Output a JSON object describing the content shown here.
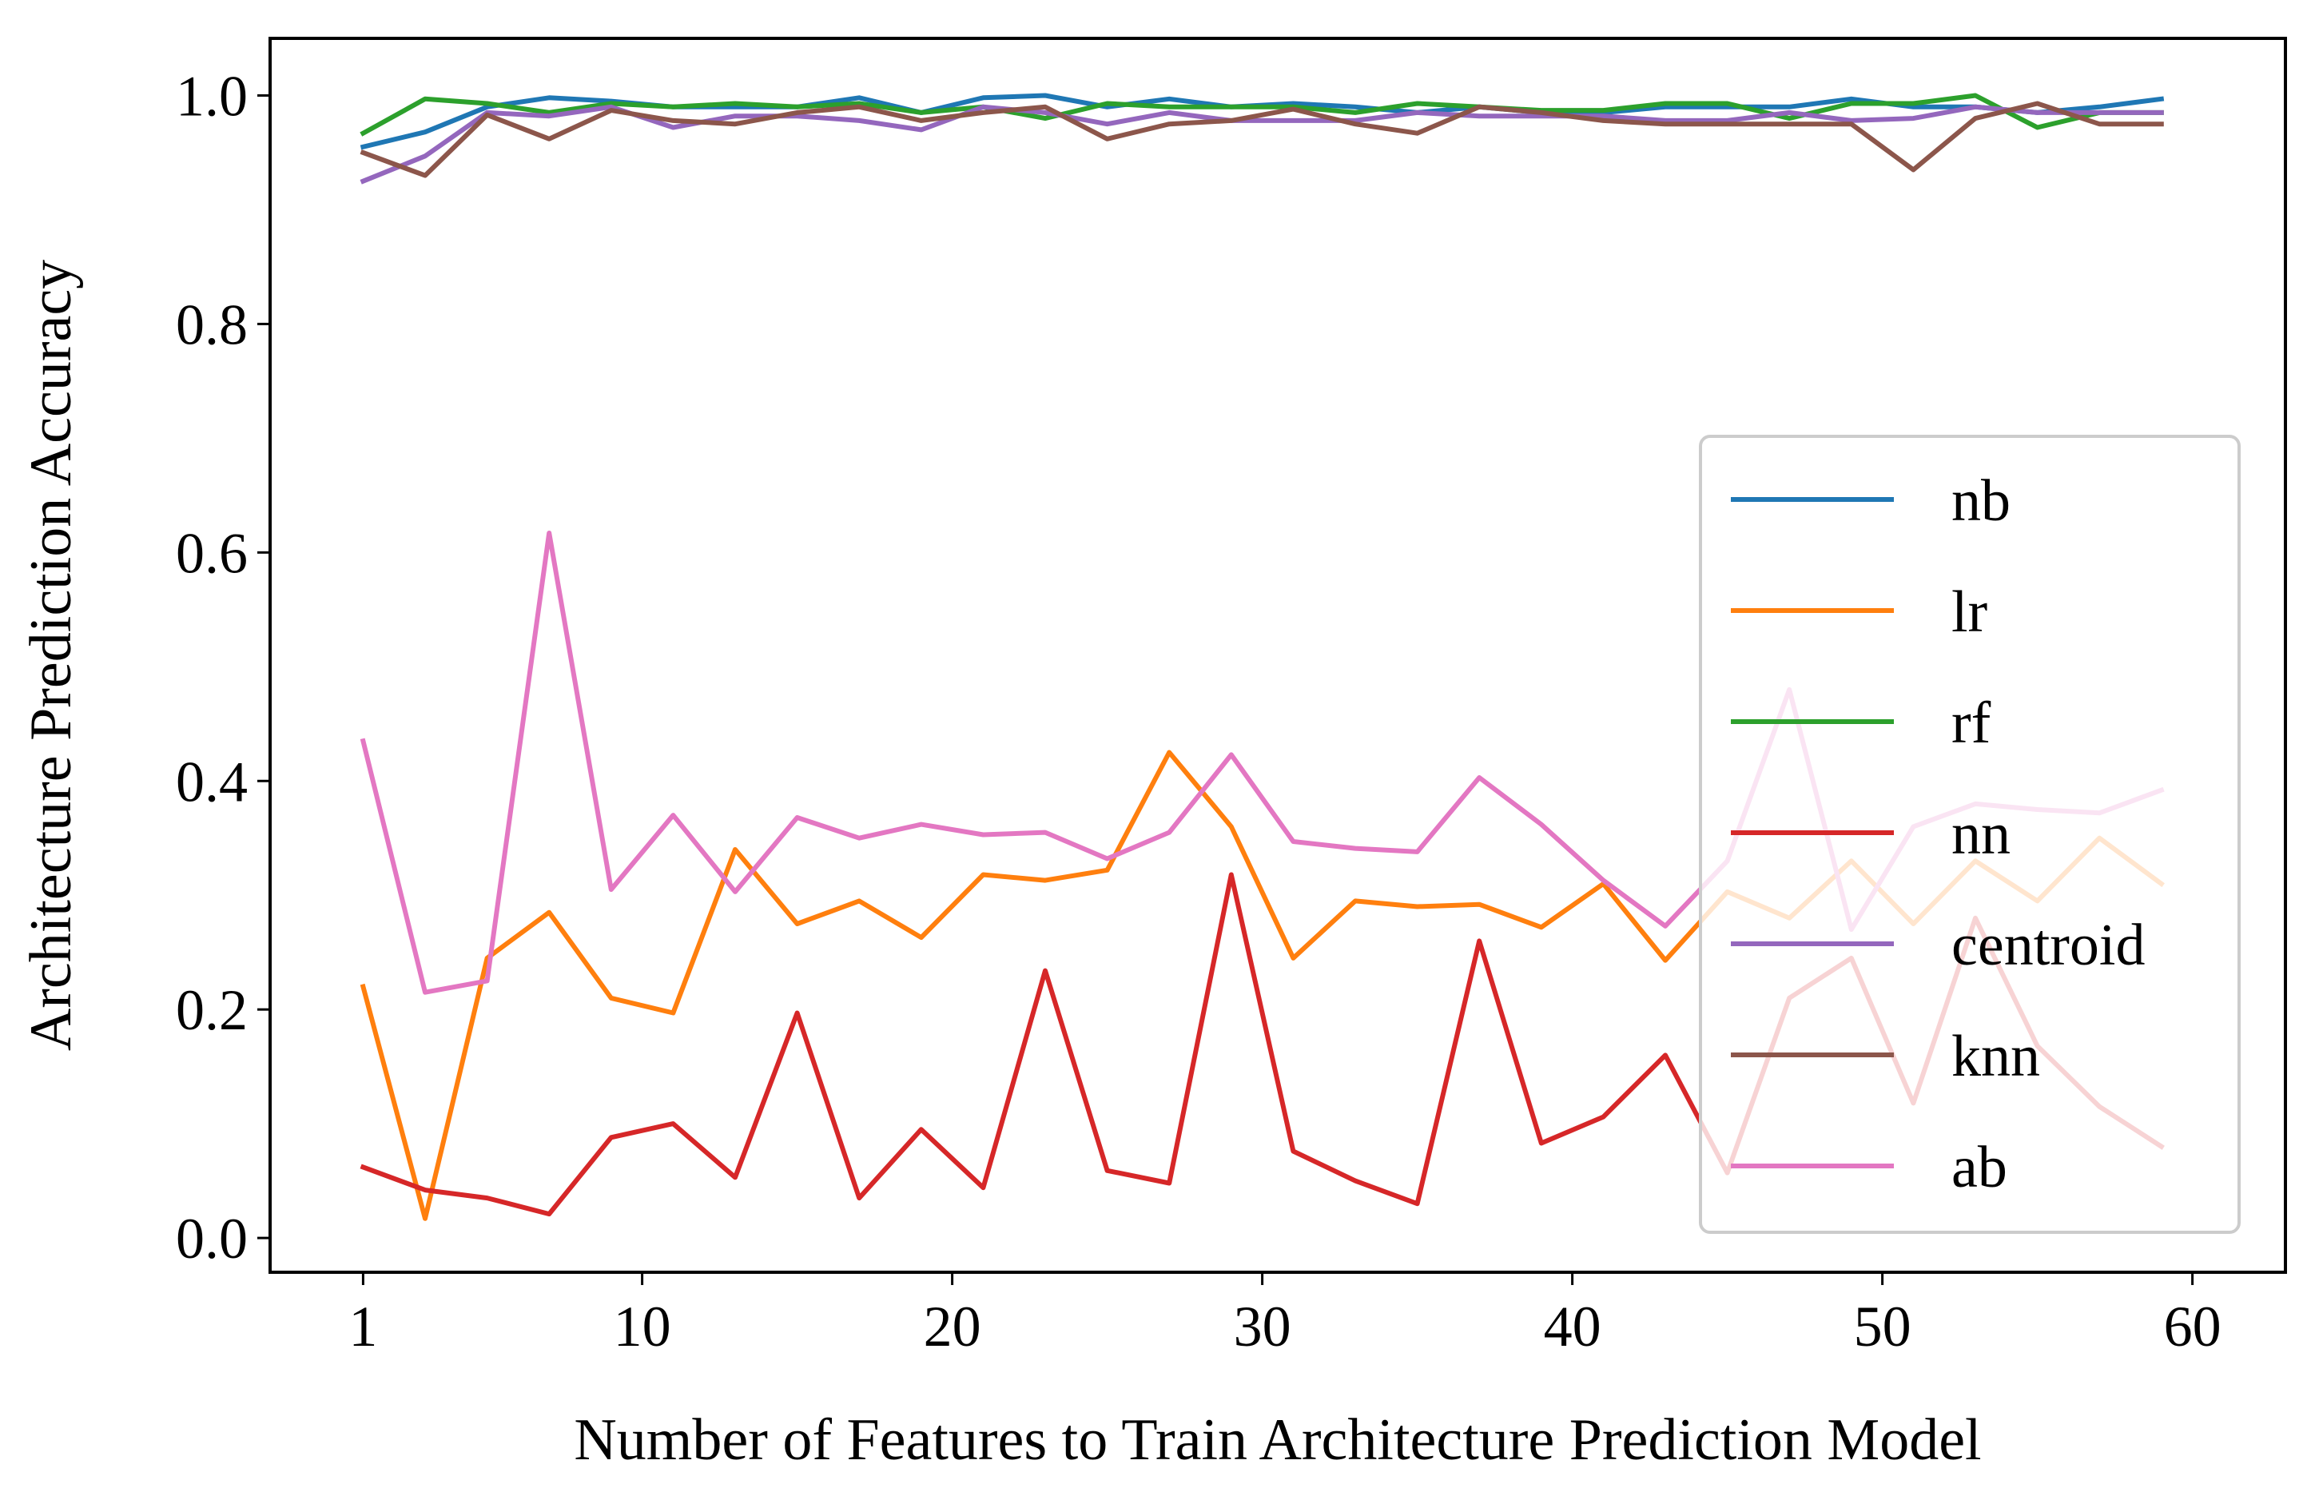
{
  "chart_data": {
    "type": "line",
    "title": "",
    "xlabel": "Number of Features to Train Architecture Prediction Model",
    "ylabel": "Architecture Prediction Accuracy",
    "xlim": [
      -2,
      63
    ],
    "ylim": [
      -0.03,
      1.05
    ],
    "xticks": [
      1,
      10,
      20,
      30,
      40,
      50,
      60
    ],
    "yticks": [
      0.0,
      0.2,
      0.4,
      0.6,
      0.8,
      1.0
    ],
    "ytick_labels": [
      "0.0",
      "0.2",
      "0.4",
      "0.6",
      "0.8",
      "1.0"
    ],
    "grid": false,
    "legend_position": "center-right",
    "x": [
      1,
      3,
      5,
      7,
      9,
      11,
      13,
      15,
      17,
      19,
      21,
      23,
      25,
      27,
      29,
      31,
      33,
      35,
      37,
      39,
      41,
      43,
      45,
      47,
      49,
      51,
      53,
      55,
      57,
      59
    ],
    "series": [
      {
        "name": "nb",
        "color": "#1f77b4",
        "values": [
          0.955,
          0.968,
          0.99,
          0.998,
          0.995,
          0.99,
          0.99,
          0.99,
          0.998,
          0.985,
          0.998,
          1.0,
          0.99,
          0.997,
          0.99,
          0.993,
          0.99,
          0.985,
          0.99,
          0.985,
          0.985,
          0.99,
          0.99,
          0.99,
          0.997,
          0.99,
          0.99,
          0.985,
          0.99,
          0.997
        ]
      },
      {
        "name": "lr",
        "color": "#ff7f0e",
        "values": [
          0.22,
          0.017,
          0.245,
          0.285,
          0.21,
          0.197,
          0.34,
          0.275,
          0.295,
          0.263,
          0.318,
          0.313,
          0.322,
          0.425,
          0.36,
          0.245,
          0.295,
          0.29,
          0.292,
          0.272,
          0.31,
          0.243,
          0.303,
          0.28,
          0.33,
          0.275,
          0.33,
          0.295,
          0.35,
          0.31
        ]
      },
      {
        "name": "rf",
        "color": "#2ca02c",
        "values": [
          0.967,
          0.997,
          0.993,
          0.985,
          0.993,
          0.99,
          0.993,
          0.99,
          0.993,
          0.985,
          0.99,
          0.98,
          0.993,
          0.99,
          0.99,
          0.99,
          0.985,
          0.993,
          0.99,
          0.987,
          0.987,
          0.993,
          0.993,
          0.98,
          0.993,
          0.993,
          1.0,
          0.972,
          0.985,
          0.985
        ]
      },
      {
        "name": "nn",
        "color": "#d62728",
        "values": [
          0.062,
          0.042,
          0.035,
          0.021,
          0.088,
          0.1,
          0.053,
          0.197,
          0.035,
          0.095,
          0.044,
          0.234,
          0.059,
          0.048,
          0.318,
          0.076,
          0.05,
          0.03,
          0.26,
          0.083,
          0.106,
          0.16,
          0.057,
          0.21,
          0.245,
          0.118,
          0.28,
          0.168,
          0.115,
          0.08
        ]
      },
      {
        "name": "centroid",
        "color": "#9467bd",
        "values": [
          0.925,
          0.947,
          0.985,
          0.982,
          0.99,
          0.972,
          0.982,
          0.982,
          0.978,
          0.97,
          0.99,
          0.985,
          0.975,
          0.985,
          0.978,
          0.978,
          0.978,
          0.985,
          0.982,
          0.982,
          0.982,
          0.978,
          0.978,
          0.985,
          0.978,
          0.98,
          0.99,
          0.985,
          0.985,
          0.985
        ]
      },
      {
        "name": "knn",
        "color": "#8c564b",
        "values": [
          0.95,
          0.93,
          0.983,
          0.962,
          0.987,
          0.978,
          0.975,
          0.985,
          0.99,
          0.978,
          0.985,
          0.99,
          0.962,
          0.975,
          0.978,
          0.988,
          0.975,
          0.967,
          0.99,
          0.985,
          0.978,
          0.975,
          0.975,
          0.975,
          0.975,
          0.935,
          0.98,
          0.993,
          0.975,
          0.975
        ]
      },
      {
        "name": "ab",
        "color": "#e377c2",
        "values": [
          0.435,
          0.215,
          0.225,
          0.617,
          0.305,
          0.37,
          0.303,
          0.368,
          0.35,
          0.362,
          0.353,
          0.355,
          0.332,
          0.355,
          0.423,
          0.347,
          0.341,
          0.338,
          0.403,
          0.362,
          0.313,
          0.273,
          0.33,
          0.48,
          0.27,
          0.36,
          0.38,
          0.375,
          0.372,
          0.392
        ]
      }
    ]
  }
}
